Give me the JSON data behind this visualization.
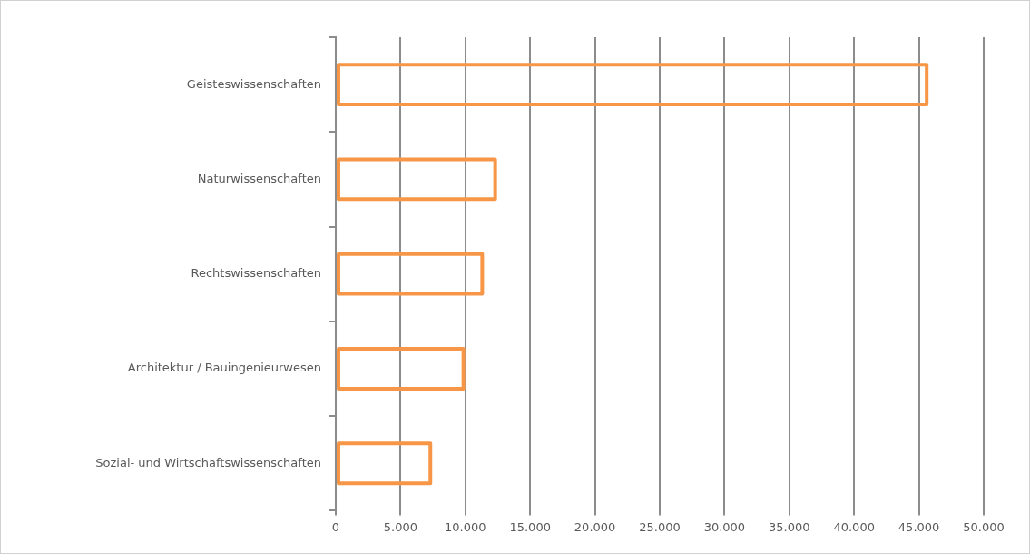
{
  "chart_data": {
    "type": "bar",
    "orientation": "horizontal",
    "categories": [
      "Geisteswissenschaften",
      "Naturwissenschaften",
      "Rechtswissenschaften",
      "Architektur / Bauingenieurwesen",
      "Sozial- und Wirtschaftswissenschaften"
    ],
    "series": [
      {
        "color": "#f79646",
        "values": [
          45600,
          12300,
          11300,
          9850,
          7300
        ]
      }
    ],
    "xlim": [
      0,
      50000
    ],
    "xticks": [
      0,
      {
        "value": 5000,
        "label": "5.000"
      },
      {
        "value": 10000,
        "label": "10.000"
      },
      {
        "value": 15000,
        "label": "15.000"
      },
      {
        "value": 20000,
        "label": "20.000"
      },
      {
        "value": 25000,
        "label": "25.000"
      },
      {
        "value": 30000,
        "label": "30.000"
      },
      {
        "value": 35000,
        "label": "35.000"
      },
      {
        "value": 40000,
        "label": "40.000"
      },
      {
        "value": 45000,
        "label": "45.000"
      },
      {
        "value": 50000,
        "label": "50.000"
      }
    ],
    "grid": "x",
    "legend": false
  }
}
